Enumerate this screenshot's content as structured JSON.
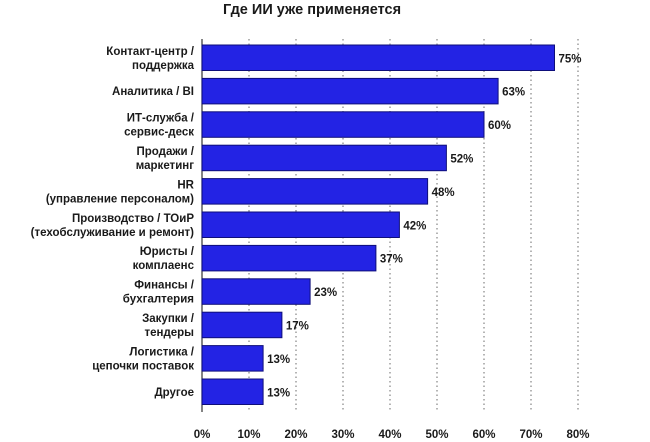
{
  "chart_data": {
    "type": "bar",
    "orientation": "horizontal",
    "title": "Где ИИ уже применяется",
    "categories": [
      [
        "Контакт-центр /",
        "поддержка"
      ],
      [
        "Аналитика / BI"
      ],
      [
        "ИТ-служба /",
        "сервис-деск"
      ],
      [
        "Продажи /",
        "маркетинг"
      ],
      [
        "HR",
        "(управление персоналом)"
      ],
      [
        "Производство / ТОиР",
        "(техобслуживание и ремонт)"
      ],
      [
        "Юристы /",
        "комплаенс"
      ],
      [
        "Финансы /",
        "бухгалтерия"
      ],
      [
        "Закупки /",
        "тендеры"
      ],
      [
        "Логистика /",
        "цепочки поставок"
      ],
      [
        "Другое"
      ]
    ],
    "values": [
      75,
      63,
      60,
      52,
      48,
      42,
      37,
      23,
      17,
      13,
      13
    ],
    "value_labels": [
      "75%",
      "63%",
      "60%",
      "52%",
      "48%",
      "42%",
      "37%",
      "23%",
      "17%",
      "13%",
      "13%"
    ],
    "xlim": [
      0,
      80
    ],
    "x_ticks": [
      0,
      10,
      20,
      30,
      40,
      50,
      60,
      70,
      80
    ],
    "x_tick_labels": [
      "0%",
      "10%",
      "20%",
      "30%",
      "40%",
      "50%",
      "60%",
      "70%",
      "80%"
    ],
    "grid": true,
    "colors": {
      "bar": "#2323e4",
      "bar_edge": "#0e0e7a",
      "grid": "#6b6b6b",
      "text": "#1a1a1a"
    }
  }
}
